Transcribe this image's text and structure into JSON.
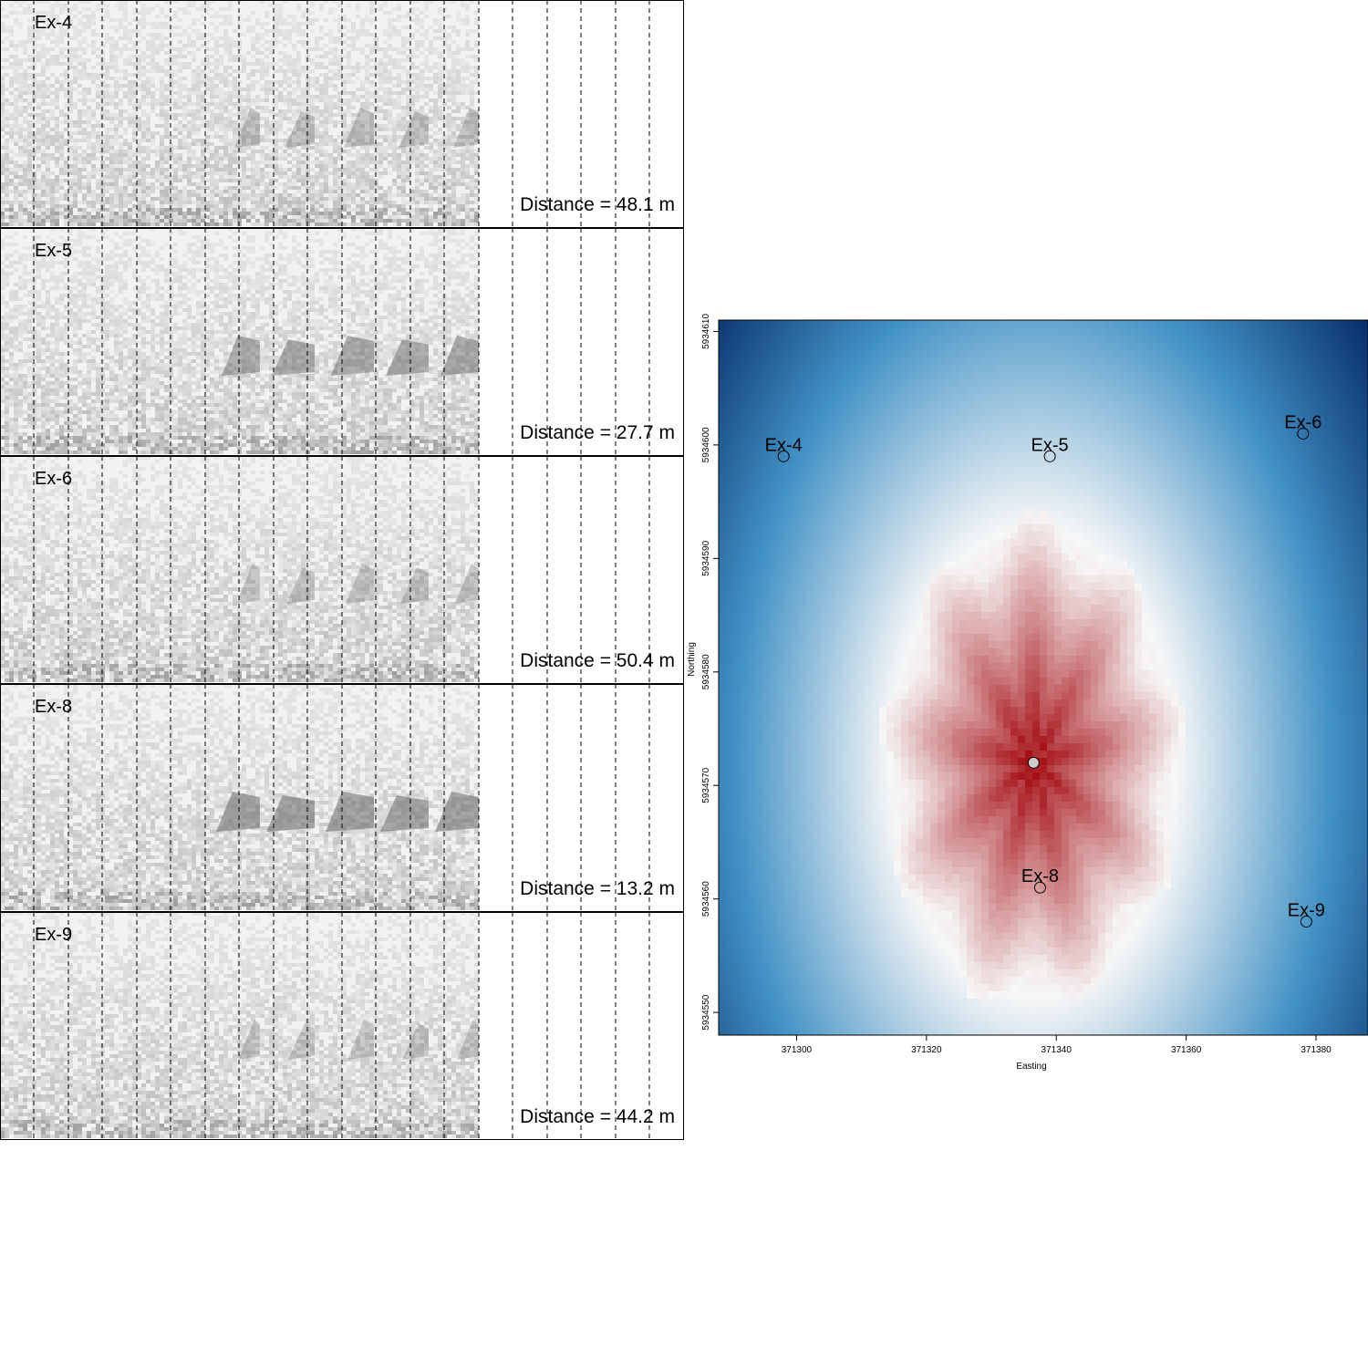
{
  "chart_data": [
    {
      "type": "spectrogram",
      "panels": [
        {
          "label": "Ex-4",
          "distance_text": "Distance = 48.1 m",
          "distance_m": 48.1,
          "call_intensity": 0.45
        },
        {
          "label": "Ex-5",
          "distance_text": "Distance = 27.7 m",
          "distance_m": 27.7,
          "call_intensity": 0.8
        },
        {
          "label": "Ex-6",
          "distance_text": "Distance = 50.4 m",
          "distance_m": 50.4,
          "call_intensity": 0.4
        },
        {
          "label": "Ex-8",
          "distance_text": "Distance = 13.2 m",
          "distance_m": 13.2,
          "call_intensity": 0.95
        },
        {
          "label": "Ex-9",
          "distance_text": "Distance = 44.2 m",
          "distance_m": 44.2,
          "call_intensity": 0.35
        }
      ],
      "grid": "vertical dashed lines",
      "colors": {
        "background": "#f2f2f2",
        "noise": "#dcdcdc",
        "call": "#555555"
      }
    },
    {
      "type": "heatmap",
      "xlabel": "Easting",
      "ylabel": "Northing",
      "xlim": [
        371288,
        371388
      ],
      "ylim": [
        5934548,
        5934611
      ],
      "x_ticks": [
        371300,
        371320,
        371340,
        371360,
        371380
      ],
      "y_ticks": [
        5934550,
        5934560,
        5934570,
        5934580,
        5934590,
        5934600,
        5934610
      ],
      "estimated_source": {
        "x": 371336.5,
        "y": 5934572
      },
      "recorders": [
        {
          "label": "Ex-4",
          "x": 371298,
          "y": 5934599
        },
        {
          "label": "Ex-5",
          "x": 371339,
          "y": 5934599
        },
        {
          "label": "Ex-6",
          "x": 371378,
          "y": 5934601
        },
        {
          "label": "Ex-8",
          "x": 371337.5,
          "y": 5934561
        },
        {
          "label": "Ex-9",
          "x": 371378.5,
          "y": 5934558
        }
      ],
      "colors": {
        "high": "#a50f15",
        "mid": "#f7f7f7",
        "low": "#08306b",
        "source_marker": "#cccccc"
      }
    }
  ]
}
